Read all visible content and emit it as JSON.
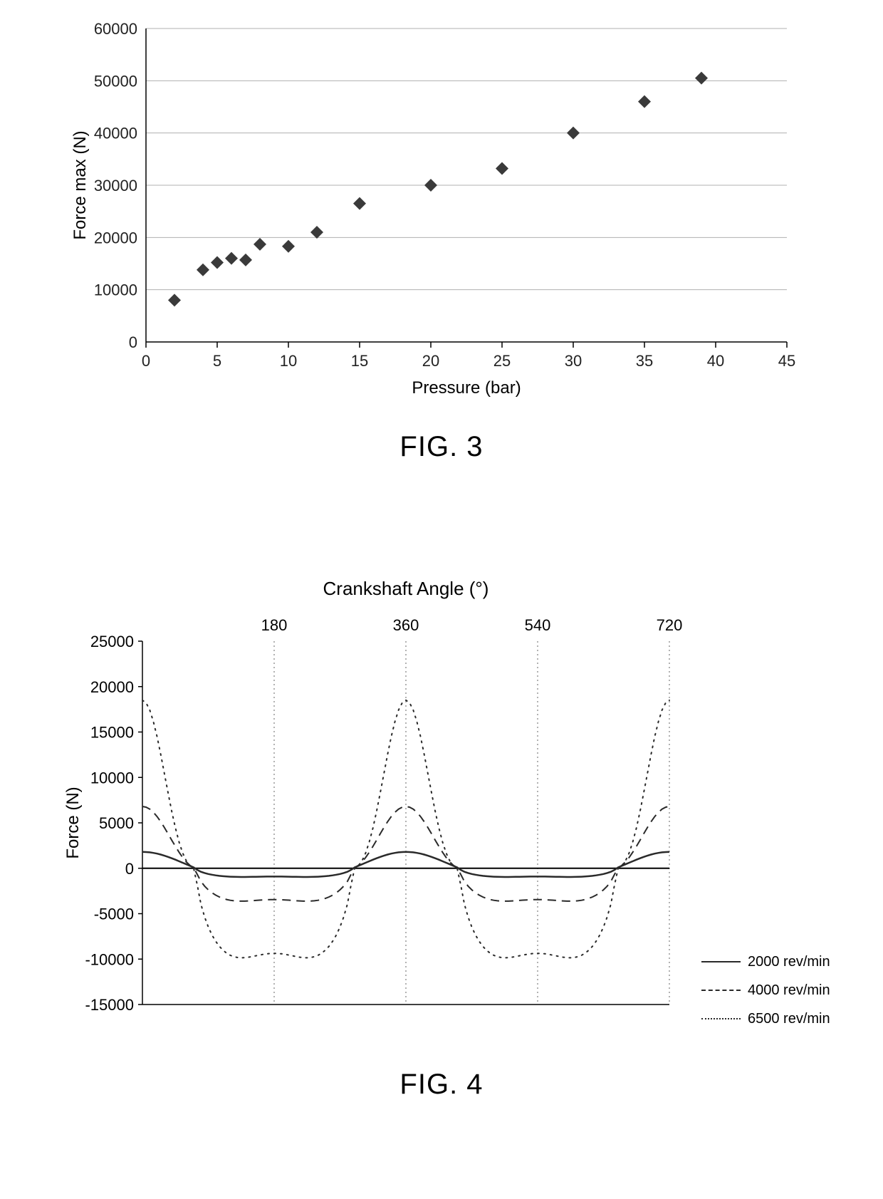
{
  "fig3": {
    "caption": "FIG. 3",
    "type": "scatter",
    "xlabel": "Pressure  (bar)",
    "ylabel": "Force max (N)",
    "xlim": [
      0,
      45
    ],
    "ylim": [
      0,
      60000
    ],
    "xticks": [
      0,
      5,
      10,
      15,
      20,
      25,
      30,
      35,
      40,
      45
    ],
    "yticks": [
      0,
      10000,
      20000,
      30000,
      40000,
      50000,
      60000
    ],
    "xtick_step": 5,
    "ytick_step": 10000,
    "grid_color": "#b0b0b0",
    "axis_color": "#000000",
    "background_color": "#ffffff",
    "marker_color": "#3a3a3a",
    "marker_size": 9,
    "marker_shape": "diamond",
    "label_fontsize": 24,
    "tick_fontsize": 22,
    "points": [
      {
        "x": 2,
        "y": 8000
      },
      {
        "x": 4,
        "y": 13800
      },
      {
        "x": 5,
        "y": 15200
      },
      {
        "x": 6,
        "y": 16000
      },
      {
        "x": 7,
        "y": 15700
      },
      {
        "x": 8,
        "y": 18700
      },
      {
        "x": 10,
        "y": 18300
      },
      {
        "x": 12,
        "y": 21000
      },
      {
        "x": 15,
        "y": 26500
      },
      {
        "x": 20,
        "y": 30000
      },
      {
        "x": 25,
        "y": 33200
      },
      {
        "x": 30,
        "y": 40000
      },
      {
        "x": 35,
        "y": 46000
      },
      {
        "x": 39,
        "y": 50500
      }
    ]
  },
  "fig4": {
    "caption": "FIG. 4",
    "type": "line",
    "title": "Crankshaft Angle (°)",
    "ylabel": "Force (N)",
    "xlim": [
      0,
      720
    ],
    "ylim": [
      -15000,
      25000
    ],
    "xticks": [
      180,
      360,
      540,
      720
    ],
    "yticks": [
      -15000,
      -10000,
      -5000,
      0,
      5000,
      10000,
      15000,
      20000,
      25000
    ],
    "xtick_step": 180,
    "ytick_step": 5000,
    "vline_color": "#666666",
    "vline_dash": "2,4",
    "zeroline_color": "#000000",
    "zeroline_width": 2,
    "axis_color": "#000000",
    "background_color": "#ffffff",
    "label_fontsize": 24,
    "tick_fontsize": 22,
    "x_step_deg": 5,
    "series": [
      {
        "name": "2000 rev/min",
        "label": "2000 rev/min",
        "color": "#2a2a2a",
        "width": 2.5,
        "dash": "",
        "style": "solid",
        "amplitude": 1800,
        "offset": 0,
        "sharpness": 1.0
      },
      {
        "name": "4000 rev/min",
        "label": "4000 rev/min",
        "color": "#2a2a2a",
        "width": 2,
        "dash": "12,8",
        "style": "dashed",
        "amplitude": 6800,
        "offset": 0,
        "sharpness": 1.6
      },
      {
        "name": "6500 rev/min",
        "label": "6500 rev/min",
        "color": "#2a2a2a",
        "width": 2,
        "dash": "2,7",
        "style": "dotted",
        "amplitude": 18500,
        "offset": 0,
        "sharpness": 2.2
      }
    ],
    "legend_position": "right-outside"
  }
}
